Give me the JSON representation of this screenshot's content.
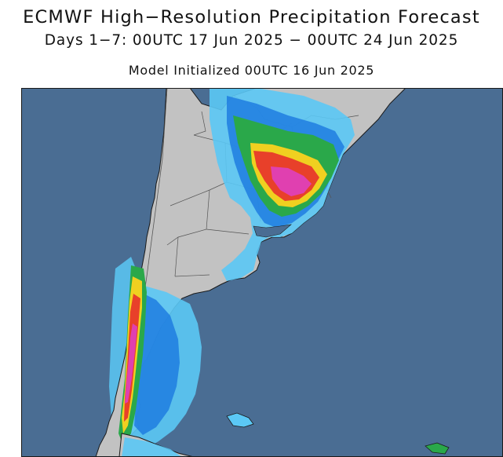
{
  "header": {
    "title": "ECMWF High−Resolution Precipitation Forecast",
    "subtitle": "Days 1−7: 00UTC 17 Jun 2025 − 00UTC 24 Jun 2025",
    "init": "Model Initialized 00UTC 16 Jun 2025"
  },
  "map": {
    "region": "Southern South America",
    "colors": {
      "ocean": "#4a6d93",
      "land": "#c2c2c2",
      "border": "#555555",
      "frame": "#1a1a1a",
      "precip_light": "#5bc8f5",
      "precip_medium": "#1e7ce0",
      "precip_heavy": "#2aa84a",
      "precip_very_heavy": "#f0d020",
      "precip_extreme": "#e8402a",
      "precip_max": "#e040b0"
    }
  }
}
